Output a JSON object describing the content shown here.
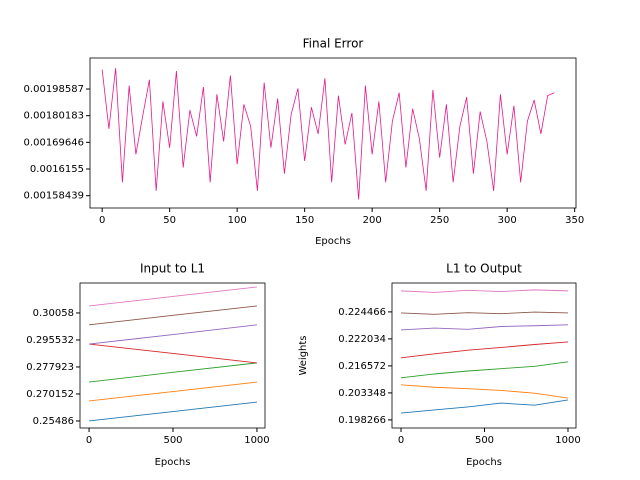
{
  "chart_data": [
    {
      "type": "line",
      "title": "Final Error",
      "xlabel": "Epochs",
      "yscale": "tick-spaced",
      "x": [
        0,
        5,
        10,
        15,
        20,
        25,
        30,
        35,
        40,
        45,
        50,
        55,
        60,
        65,
        70,
        75,
        80,
        85,
        90,
        95,
        100,
        105,
        110,
        115,
        120,
        125,
        130,
        135,
        140,
        145,
        150,
        155,
        160,
        165,
        170,
        175,
        180,
        185,
        190,
        195,
        200,
        205,
        210,
        215,
        220,
        225,
        230,
        235,
        240,
        245,
        250,
        255,
        260,
        265,
        270,
        275,
        280,
        285,
        290,
        295,
        300,
        305,
        310,
        315,
        320,
        325,
        330,
        335
      ],
      "series": [
        {
          "color": "#e6198a",
          "values": [
            0.00212,
            0.00175,
            0.00213,
            0.0016,
            0.00201,
            0.00166,
            0.0018,
            0.00205,
            0.00159,
            0.0019,
            0.00168,
            0.00211,
            0.00162,
            0.00184,
            0.00172,
            0.002,
            0.0016,
            0.00195,
            0.0017,
            0.00208,
            0.00163,
            0.00188,
            0.00176,
            0.00159,
            0.00203,
            0.00168,
            0.00192,
            0.00161,
            0.00181,
            0.00199,
            0.00164,
            0.00186,
            0.00173,
            0.00206,
            0.0016,
            0.00194,
            0.00169,
            0.00182,
            0.00158,
            0.00201,
            0.00166,
            0.0019,
            0.0016,
            0.00178,
            0.00196,
            0.00162,
            0.00185,
            0.00171,
            0.00159,
            0.00198,
            0.00165,
            0.00188,
            0.0016,
            0.00176,
            0.00193,
            0.00161,
            0.00183,
            0.0017,
            0.00159,
            0.00195,
            0.00166,
            0.00187,
            0.0016,
            0.00178,
            0.00191,
            0.00173,
            0.00194,
            0.00196
          ]
        }
      ],
      "xlim": [
        -9,
        351
      ],
      "xticks": [
        0,
        50,
        100,
        150,
        200,
        250,
        300,
        350
      ],
      "ylim": [
        0.00157,
        0.0022
      ],
      "yticks": [
        0.00158439,
        0.0016155,
        0.00169646,
        0.00180183,
        0.00198587
      ]
    },
    {
      "type": "line",
      "title": "Input to L1",
      "xlabel": "Epochs",
      "yscale": "tick-spaced",
      "x": [
        0,
        500,
        1000
      ],
      "series": [
        {
          "color": "#1f77b4",
          "values": [
            0.25486,
            0.26021,
            0.26557
          ]
        },
        {
          "color": "#ff7f0e",
          "values": [
            0.26618,
            0.27086,
            0.27358
          ]
        },
        {
          "color": "#2ca02c",
          "values": [
            0.27358,
            0.27638,
            0.28056
          ]
        },
        {
          "color": "#d62728",
          "values": [
            0.29289,
            0.28673,
            0.28056
          ]
        },
        {
          "color": "#9467bd",
          "values": [
            0.29289,
            0.29654,
            0.29836
          ]
        },
        {
          "color": "#8c564b",
          "values": [
            0.29836,
            0.30013,
            0.30189
          ]
        },
        {
          "color": "#e377c2",
          "values": [
            0.30189,
            0.30366,
            0.30543
          ]
        }
      ],
      "xlim": [
        -54,
        1048
      ],
      "xticks": [
        0,
        500,
        1000
      ],
      "ylim": [
        0.25088,
        0.30618
      ],
      "yticks": [
        0.25486,
        0.270152,
        0.277923,
        0.295532,
        0.30058
      ]
    },
    {
      "type": "line",
      "title": "L1 to Output",
      "xlabel": "Epochs",
      "ylabel": "Weights",
      "yscale": "tick-spaced",
      "x": [
        0,
        200,
        400,
        600,
        800,
        1000
      ],
      "series": [
        {
          "color": "#1f77b4",
          "values": [
            0.19955,
            0.20015,
            0.20071,
            0.20143,
            0.20103,
            0.20203
          ]
        },
        {
          "color": "#ff7f0e",
          "values": [
            0.20731,
            0.20612,
            0.2054,
            0.20455,
            0.2033,
            0.20238
          ]
        },
        {
          "color": "#2ca02c",
          "values": [
            0.21075,
            0.21261,
            0.21408,
            0.21522,
            0.21639,
            0.21739
          ]
        },
        {
          "color": "#d62728",
          "values": [
            0.21821,
            0.21902,
            0.21975,
            0.2203,
            0.2209,
            0.22143
          ]
        },
        {
          "color": "#9467bd",
          "values": [
            0.22284,
            0.22301,
            0.2229,
            0.22315,
            0.22322,
            0.2233
          ]
        },
        {
          "color": "#8c564b",
          "values": [
            0.22437,
            0.22425,
            0.2244,
            0.22431,
            0.22445,
            0.22437
          ]
        },
        {
          "color": "#e377c2",
          "values": [
            0.22636,
            0.22622,
            0.22641,
            0.2263,
            0.22645,
            0.22636
          ]
        }
      ],
      "xlim": [
        -54,
        1048
      ],
      "xticks": [
        0,
        500,
        1000
      ],
      "ylim": [
        0.19674,
        0.22707
      ],
      "yticks": [
        0.198266,
        0.203348,
        0.216572,
        0.222034,
        0.224466
      ]
    }
  ]
}
